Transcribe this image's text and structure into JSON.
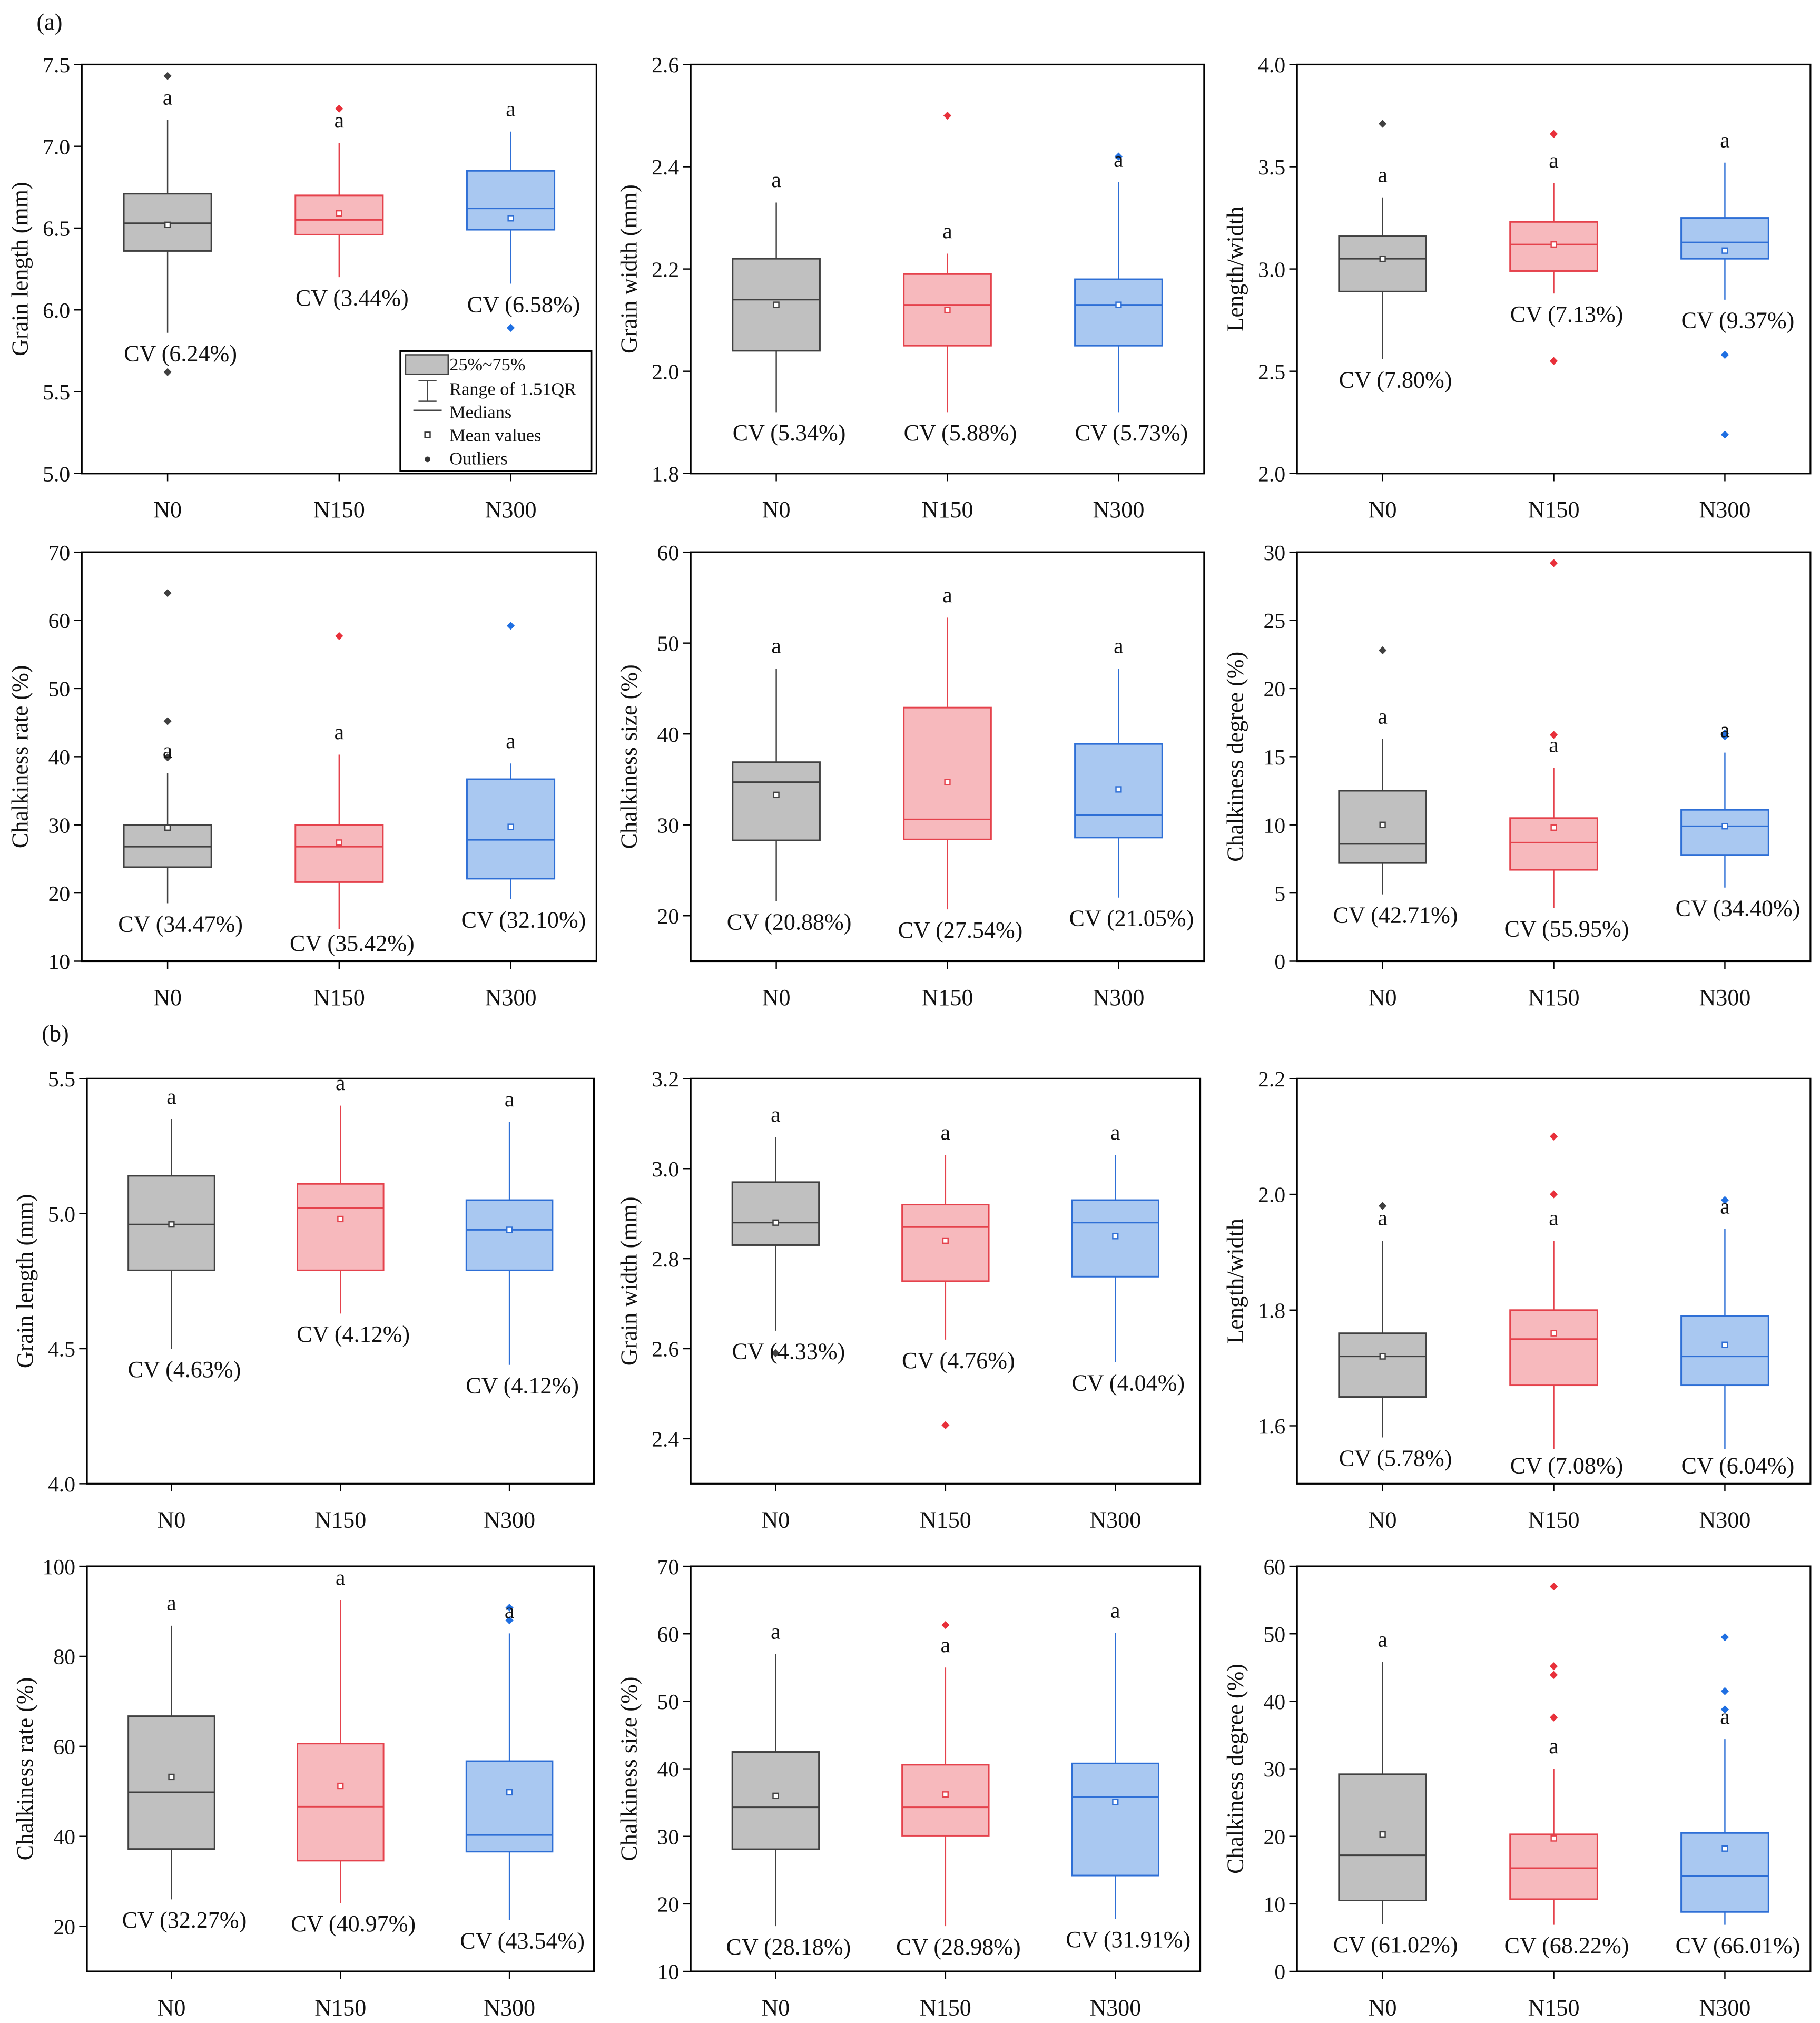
{
  "panel_labels": [
    "(a)",
    "(b)"
  ],
  "legend": {
    "items": [
      "25%~75%",
      "Range of 1.51QR",
      "Medians",
      "Mean values",
      "Outliers"
    ]
  },
  "colors": {
    "N0": {
      "fill": "#c0c0c0",
      "stroke": "#404040",
      "outlier": "#404040"
    },
    "N150": {
      "fill": "#f7b9bd",
      "stroke": "#e5424c",
      "outlier": "#e8303a"
    },
    "N300": {
      "fill": "#a9c8f1",
      "stroke": "#2e6fd6",
      "outlier": "#1f6fe2"
    }
  },
  "chart_data": [
    {
      "type": "box",
      "panel": "a",
      "ylabel": "Grain length (mm)",
      "ylim": [
        5.0,
        7.5
      ],
      "yticks": [
        "5.0",
        "5.5",
        "6.0",
        "6.5",
        "7.0",
        "7.5"
      ],
      "categories": [
        "N0",
        "N150",
        "N300"
      ],
      "groups": [
        {
          "q1": 6.36,
          "median": 6.53,
          "q3": 6.71,
          "whisker_low": 5.86,
          "whisker_high": 7.16,
          "mean": 6.52,
          "outliers": [
            7.43,
            5.62
          ],
          "letter": "a",
          "cv": "CV (6.24%)"
        },
        {
          "q1": 6.46,
          "median": 6.55,
          "q3": 6.7,
          "whisker_low": 6.2,
          "whisker_high": 7.02,
          "mean": 6.59,
          "outliers": [
            7.23
          ],
          "letter": "a",
          "cv": "CV (3.44%)"
        },
        {
          "q1": 6.49,
          "median": 6.62,
          "q3": 6.85,
          "whisker_low": 6.16,
          "whisker_high": 7.09,
          "mean": 6.56,
          "outliers": [
            5.89
          ],
          "letter": "a",
          "cv": "CV (6.58%)"
        }
      ]
    },
    {
      "type": "box",
      "panel": "a",
      "ylabel": "Grain width (mm)",
      "ylim": [
        1.8,
        2.6
      ],
      "yticks": [
        "1.8",
        "2.0",
        "2.2",
        "2.4",
        "2.6"
      ],
      "categories": [
        "N0",
        "N150",
        "N300"
      ],
      "groups": [
        {
          "q1": 2.04,
          "median": 2.14,
          "q3": 2.22,
          "whisker_low": 1.92,
          "whisker_high": 2.33,
          "mean": 2.13,
          "outliers": [],
          "letter": "a",
          "cv": "CV (5.34%)"
        },
        {
          "q1": 2.05,
          "median": 2.13,
          "q3": 2.19,
          "whisker_low": 1.92,
          "whisker_high": 2.23,
          "mean": 2.12,
          "outliers": [
            2.5
          ],
          "letter": "a",
          "cv": "CV (5.88%)"
        },
        {
          "q1": 2.05,
          "median": 2.13,
          "q3": 2.18,
          "whisker_low": 1.92,
          "whisker_high": 2.37,
          "mean": 2.13,
          "outliers": [
            2.42
          ],
          "letter": "a",
          "cv": "CV (5.73%)"
        }
      ]
    },
    {
      "type": "box",
      "panel": "a",
      "ylabel": "Length/width",
      "ylim": [
        2.0,
        4.0
      ],
      "yticks": [
        "2.0",
        "2.5",
        "3.0",
        "3.5",
        "4.0"
      ],
      "categories": [
        "N0",
        "N150",
        "N300"
      ],
      "groups": [
        {
          "q1": 2.89,
          "median": 3.05,
          "q3": 3.16,
          "whisker_low": 2.56,
          "whisker_high": 3.35,
          "mean": 3.05,
          "outliers": [
            3.71
          ],
          "letter": "a",
          "cv": "CV (7.80%)"
        },
        {
          "q1": 2.99,
          "median": 3.12,
          "q3": 3.23,
          "whisker_low": 2.88,
          "whisker_high": 3.42,
          "mean": 3.12,
          "outliers": [
            3.66,
            2.55
          ],
          "letter": "a",
          "cv": "CV (7.13%)"
        },
        {
          "q1": 3.05,
          "median": 3.13,
          "q3": 3.25,
          "whisker_low": 2.85,
          "whisker_high": 3.52,
          "mean": 3.09,
          "outliers": [
            2.58,
            2.19
          ],
          "letter": "a",
          "cv": "CV (9.37%)"
        }
      ]
    },
    {
      "type": "box",
      "panel": "a",
      "ylabel": "Chalkiness rate (%)",
      "ylim": [
        10,
        70
      ],
      "yticks": [
        "10",
        "20",
        "30",
        "40",
        "50",
        "60",
        "70"
      ],
      "categories": [
        "N0",
        "N150",
        "N300"
      ],
      "groups": [
        {
          "q1": 23.8,
          "median": 26.8,
          "q3": 30.0,
          "whisker_low": 18.5,
          "whisker_high": 37.6,
          "mean": 29.6,
          "outliers": [
            64.0,
            45.2,
            39.9
          ],
          "letter": "a",
          "cv": "CV (34.47%)"
        },
        {
          "q1": 21.6,
          "median": 26.8,
          "q3": 30.0,
          "whisker_low": 14.7,
          "whisker_high": 40.3,
          "mean": 27.4,
          "outliers": [
            57.7
          ],
          "letter": "a",
          "cv": "CV (35.42%)"
        },
        {
          "q1": 22.1,
          "median": 27.8,
          "q3": 36.7,
          "whisker_low": 19.1,
          "whisker_high": 39.0,
          "mean": 29.7,
          "outliers": [
            59.2
          ],
          "letter": "a",
          "cv": "CV (32.10%)"
        }
      ]
    },
    {
      "type": "box",
      "panel": "a",
      "ylabel": "Chalkiness size (%)",
      "ylim": [
        15,
        60
      ],
      "yticks": [
        "20",
        "30",
        "40",
        "50",
        "60"
      ],
      "categories": [
        "N0",
        "N150",
        "N300"
      ],
      "groups": [
        {
          "q1": 28.3,
          "median": 34.7,
          "q3": 36.9,
          "whisker_low": 21.6,
          "whisker_high": 47.2,
          "mean": 33.3,
          "outliers": [],
          "letter": "a",
          "cv": "CV (20.88%)"
        },
        {
          "q1": 28.4,
          "median": 30.6,
          "q3": 42.9,
          "whisker_low": 20.7,
          "whisker_high": 52.8,
          "mean": 34.7,
          "outliers": [],
          "letter": "a",
          "cv": "CV (27.54%)"
        },
        {
          "q1": 28.6,
          "median": 31.1,
          "q3": 38.9,
          "whisker_low": 22.0,
          "whisker_high": 47.2,
          "mean": 33.9,
          "outliers": [],
          "letter": "a",
          "cv": "CV (21.05%)"
        }
      ]
    },
    {
      "type": "box",
      "panel": "a",
      "ylabel": "Chalkiness degree (%)",
      "ylim": [
        0,
        30
      ],
      "yticks": [
        "0",
        "5",
        "10",
        "15",
        "20",
        "25",
        "30"
      ],
      "categories": [
        "N0",
        "N150",
        "N300"
      ],
      "groups": [
        {
          "q1": 7.2,
          "median": 8.6,
          "q3": 12.5,
          "whisker_low": 4.9,
          "whisker_high": 16.3,
          "mean": 10.0,
          "outliers": [
            22.8
          ],
          "letter": "a",
          "cv": "CV (42.71%)"
        },
        {
          "q1": 6.7,
          "median": 8.7,
          "q3": 10.5,
          "whisker_low": 3.9,
          "whisker_high": 14.2,
          "mean": 9.8,
          "outliers": [
            29.2,
            16.6
          ],
          "letter": "a",
          "cv": "CV (55.95%)"
        },
        {
          "q1": 7.8,
          "median": 9.9,
          "q3": 11.1,
          "whisker_low": 5.4,
          "whisker_high": 15.3,
          "mean": 9.9,
          "outliers": [
            16.7,
            16.5
          ],
          "letter": "a",
          "cv": "CV (34.40%)"
        }
      ]
    },
    {
      "type": "box",
      "panel": "b",
      "ylabel": "Grain length (mm)",
      "ylim": [
        4.0,
        5.5
      ],
      "yticks": [
        "4.0",
        "4.5",
        "5.0",
        "5.5"
      ],
      "categories": [
        "N0",
        "N150",
        "N300"
      ],
      "groups": [
        {
          "q1": 4.79,
          "median": 4.96,
          "q3": 5.14,
          "whisker_low": 4.5,
          "whisker_high": 5.35,
          "mean": 4.96,
          "outliers": [],
          "letter": "a",
          "cv": "CV (4.63%)"
        },
        {
          "q1": 4.79,
          "median": 5.02,
          "q3": 5.11,
          "whisker_low": 4.63,
          "whisker_high": 5.4,
          "mean": 4.98,
          "outliers": [],
          "letter": "a",
          "cv": "CV (4.12%)"
        },
        {
          "q1": 4.79,
          "median": 4.94,
          "q3": 5.05,
          "whisker_low": 4.44,
          "whisker_high": 5.34,
          "mean": 4.94,
          "outliers": [],
          "letter": "a",
          "cv": "CV (4.12%)"
        }
      ]
    },
    {
      "type": "box",
      "panel": "b",
      "ylabel": "Grain width (mm)",
      "ylim": [
        2.3,
        3.2
      ],
      "yticks": [
        "2.4",
        "2.6",
        "2.8",
        "3.0",
        "3.2"
      ],
      "categories": [
        "N0",
        "N150",
        "N300"
      ],
      "groups": [
        {
          "q1": 2.83,
          "median": 2.88,
          "q3": 2.97,
          "whisker_low": 2.64,
          "whisker_high": 3.07,
          "mean": 2.88,
          "outliers": [
            2.59
          ],
          "letter": "a",
          "cv": "CV (4.33%)"
        },
        {
          "q1": 2.75,
          "median": 2.87,
          "q3": 2.92,
          "whisker_low": 2.62,
          "whisker_high": 3.03,
          "mean": 2.84,
          "outliers": [
            2.43
          ],
          "letter": "a",
          "cv": "CV (4.76%)"
        },
        {
          "q1": 2.76,
          "median": 2.88,
          "q3": 2.93,
          "whisker_low": 2.57,
          "whisker_high": 3.03,
          "mean": 2.85,
          "outliers": [],
          "letter": "a",
          "cv": "CV (4.04%)"
        }
      ]
    },
    {
      "type": "box",
      "panel": "b",
      "ylabel": "Length/width",
      "ylim": [
        1.5,
        2.2
      ],
      "yticks": [
        "1.6",
        "1.8",
        "2.0",
        "2.2"
      ],
      "categories": [
        "N0",
        "N150",
        "N300"
      ],
      "groups": [
        {
          "q1": 1.65,
          "median": 1.72,
          "q3": 1.76,
          "whisker_low": 1.58,
          "whisker_high": 1.92,
          "mean": 1.72,
          "outliers": [
            1.98
          ],
          "letter": "a",
          "cv": "CV (5.78%)"
        },
        {
          "q1": 1.67,
          "median": 1.75,
          "q3": 1.8,
          "whisker_low": 1.56,
          "whisker_high": 1.92,
          "mean": 1.76,
          "outliers": [
            2.1,
            2.0
          ],
          "letter": "a",
          "cv": "CV (7.08%)"
        },
        {
          "q1": 1.67,
          "median": 1.72,
          "q3": 1.79,
          "whisker_low": 1.56,
          "whisker_high": 1.94,
          "mean": 1.74,
          "outliers": [
            1.99
          ],
          "letter": "a",
          "cv": "CV (6.04%)"
        }
      ]
    },
    {
      "type": "box",
      "panel": "b",
      "ylabel": "Chalkiness rate (%)",
      "ylim": [
        10,
        100
      ],
      "yticks": [
        "20",
        "40",
        "60",
        "80",
        "100"
      ],
      "categories": [
        "N0",
        "N150",
        "N300"
      ],
      "groups": [
        {
          "q1": 37.2,
          "median": 49.8,
          "q3": 66.7,
          "whisker_low": 26.0,
          "whisker_high": 86.8,
          "mean": 53.2,
          "outliers": [],
          "letter": "a",
          "cv": "CV (32.27%)"
        },
        {
          "q1": 34.6,
          "median": 46.6,
          "q3": 60.6,
          "whisker_low": 25.2,
          "whisker_high": 92.5,
          "mean": 51.2,
          "outliers": [],
          "letter": "a",
          "cv": "CV (40.97%)"
        },
        {
          "q1": 36.6,
          "median": 40.3,
          "q3": 56.7,
          "whisker_low": 21.4,
          "whisker_high": 85.1,
          "mean": 49.8,
          "outliers": [
            90.8,
            88.0
          ],
          "letter": "a",
          "cv": "CV (43.54%)"
        }
      ]
    },
    {
      "type": "box",
      "panel": "b",
      "ylabel": "Chalkiness size (%)",
      "ylim": [
        10,
        70
      ],
      "yticks": [
        "10",
        "20",
        "30",
        "40",
        "50",
        "60",
        "70"
      ],
      "categories": [
        "N0",
        "N150",
        "N300"
      ],
      "groups": [
        {
          "q1": 28.1,
          "median": 34.3,
          "q3": 42.5,
          "whisker_low": 16.7,
          "whisker_high": 57.0,
          "mean": 36.0,
          "outliers": [],
          "letter": "a",
          "cv": "CV (28.18%)"
        },
        {
          "q1": 30.1,
          "median": 34.3,
          "q3": 40.6,
          "whisker_low": 16.7,
          "whisker_high": 55.0,
          "mean": 36.2,
          "outliers": [
            61.3
          ],
          "letter": "a",
          "cv": "CV (28.98%)"
        },
        {
          "q1": 24.2,
          "median": 35.8,
          "q3": 40.8,
          "whisker_low": 17.8,
          "whisker_high": 60.1,
          "mean": 35.1,
          "outliers": [],
          "letter": "a",
          "cv": "CV (31.91%)"
        }
      ]
    },
    {
      "type": "box",
      "panel": "b",
      "ylabel": "Chalkiness degree (%)",
      "ylim": [
        0,
        60
      ],
      "yticks": [
        "0",
        "10",
        "20",
        "30",
        "40",
        "50",
        "60"
      ],
      "categories": [
        "N0",
        "N150",
        "N300"
      ],
      "groups": [
        {
          "q1": 10.5,
          "median": 17.2,
          "q3": 29.2,
          "whisker_low": 7.0,
          "whisker_high": 45.8,
          "mean": 20.3,
          "outliers": [],
          "letter": "a",
          "cv": "CV (61.02%)"
        },
        {
          "q1": 10.7,
          "median": 15.3,
          "q3": 20.3,
          "whisker_low": 6.9,
          "whisker_high": 30.0,
          "mean": 19.7,
          "outliers": [
            57.0,
            45.2,
            43.9,
            37.6
          ],
          "letter": "a",
          "cv": "CV (68.22%)"
        },
        {
          "q1": 8.8,
          "median": 14.1,
          "q3": 20.5,
          "whisker_low": 6.9,
          "whisker_high": 34.4,
          "mean": 18.2,
          "outliers": [
            49.5,
            41.5,
            38.8
          ],
          "letter": "a",
          "cv": "CV (66.01%)"
        }
      ]
    }
  ]
}
